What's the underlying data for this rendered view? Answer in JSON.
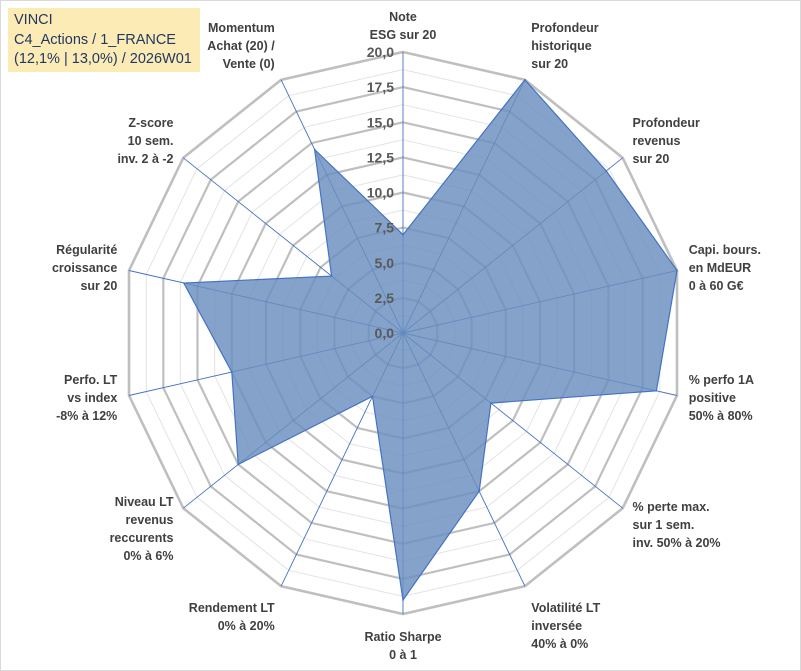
{
  "title_box": {
    "line1": "VINCI",
    "line2": "C4_Actions / 1_FRANCE",
    "line3": "(12,1% | 13,0%) / 2026W01"
  },
  "colors": {
    "fill": "#6a8fbe",
    "stroke": "#4472c4",
    "grid": "#c0c0c0",
    "title_bg": "#fdebb5"
  },
  "chart_data": {
    "type": "radar",
    "title": "VINCI",
    "rlim": [
      0,
      20
    ],
    "rticks": [
      0,
      2.5,
      5,
      7.5,
      10,
      12.5,
      15,
      17.5,
      20
    ],
    "rtick_labels": [
      "0,0",
      "2,5",
      "5,0",
      "7,5",
      "10,0",
      "12,5",
      "15,0",
      "17,5",
      "20,0"
    ],
    "categories": [
      [
        "Note",
        "ESG sur 20"
      ],
      [
        "Profondeur",
        "historique",
        "sur 20"
      ],
      [
        "Profondeur",
        "revenus",
        "sur 20"
      ],
      [
        "Capi. bours.",
        "en MdEUR",
        "0 à 60 G€"
      ],
      [
        "% perfo 1A",
        "positive",
        "50% à 80%"
      ],
      [
        "% perte max.",
        "sur 1 sem.",
        "inv. 50% à 20%"
      ],
      [
        "Volatilité LT",
        "inversée",
        "40% à 0%"
      ],
      [
        "Ratio Sharpe",
        "0 à 1"
      ],
      [
        "Rendement LT",
        "0% à 20%"
      ],
      [
        "Niveau LT",
        "revenus",
        "reccurents",
        "0% à 6%"
      ],
      [
        "Perfo. LT",
        "vs index",
        "-8% à 12%"
      ],
      [
        "Régularité",
        "croissance",
        "sur 20"
      ],
      [
        "Z-score",
        "10 sem.",
        "inv. 2 à -2"
      ],
      [
        "Momentum",
        "Achat (20) /",
        "Vente (0)"
      ]
    ],
    "series": [
      {
        "name": "VINCI",
        "values": [
          7.0,
          20.0,
          18.5,
          20.0,
          18.5,
          8.0,
          12.5,
          19.0,
          5.0,
          15.0,
          12.5,
          16.0,
          6.5,
          14.5
        ]
      }
    ]
  }
}
